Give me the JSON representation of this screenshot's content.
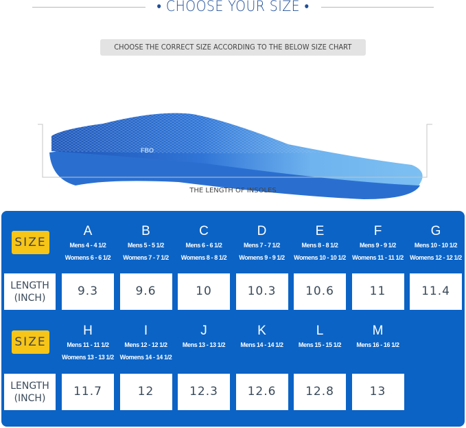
{
  "header": {
    "title": "CHOOSE YOUR SIZE",
    "bullet": "•"
  },
  "subtitle": "CHOOSE THE CORRECT SIZE ACCORDING TO THE BELOW SIZE CHART",
  "product": {
    "caption": "THE LENGTH OF INSOLES",
    "brand_mark": "FBO"
  },
  "colors": {
    "panel": "#0b63c5",
    "badge": "#f6c518",
    "title": "#1f4f9a"
  },
  "size_chart": {
    "size_label": "SIZE",
    "length_label_1": "LENGTH",
    "length_label_2": "(INCH)",
    "rows": [
      {
        "sizes": [
          {
            "letter": "A",
            "mens": "Mens 4 - 4 1/2",
            "womens": "Womens 6 - 6 1/2",
            "length": "9.3"
          },
          {
            "letter": "B",
            "mens": "Mens 5 - 5 1/2",
            "womens": "Womens 7 - 7 1/2",
            "length": "9.6"
          },
          {
            "letter": "C",
            "mens": "Mens 6 - 6 1/2",
            "womens": "Womens 8 - 8 1/2",
            "length": "10"
          },
          {
            "letter": "D",
            "mens": "Mens 7 - 7 1/2",
            "womens": "Womens 9 - 9 1/2",
            "length": "10.3"
          },
          {
            "letter": "E",
            "mens": "Mens 8 - 8 1/2",
            "womens": "Womens 10 - 10 1/2",
            "length": "10.6"
          },
          {
            "letter": "F",
            "mens": "Mens 9 - 9 1/2",
            "womens": "Womens 11 - 11 1/2",
            "length": "11"
          },
          {
            "letter": "G",
            "mens": "Mens 10 - 10 1/2",
            "womens": "Womens 12 - 12 1/2",
            "length": "11.4"
          }
        ]
      },
      {
        "sizes": [
          {
            "letter": "H",
            "mens": "Mens 11 - 11 1/2",
            "womens": "Womens 13 - 13 1/2",
            "length": "11.7"
          },
          {
            "letter": "I",
            "mens": "Mens 12 - 12 1/2",
            "womens": "Womens 14 - 14 1/2",
            "length": "12"
          },
          {
            "letter": "J",
            "mens": "Mens 13 - 13 1/2",
            "womens": "",
            "length": "12.3"
          },
          {
            "letter": "K",
            "mens": "Mens 14 - 14 1/2",
            "womens": "",
            "length": "12.6"
          },
          {
            "letter": "L",
            "mens": "Mens 15 - 15 1/2",
            "womens": "",
            "length": "12.8"
          },
          {
            "letter": "M",
            "mens": "Mens 16 - 16 1/2",
            "womens": "",
            "length": "13"
          }
        ]
      }
    ]
  }
}
